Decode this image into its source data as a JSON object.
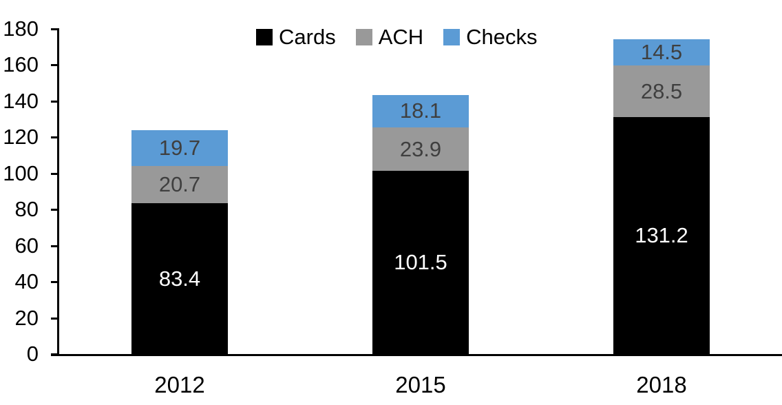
{
  "chart_data": {
    "type": "bar",
    "stacked": true,
    "title": "",
    "categories": [
      "2012",
      "2015",
      "2018"
    ],
    "series": [
      {
        "name": "Cards",
        "color": "#000000",
        "label_color": "#ffffff",
        "values": [
          83.4,
          101.5,
          131.2
        ]
      },
      {
        "name": "ACH",
        "color": "#999999",
        "label_color": "#3f3f3f",
        "values": [
          20.7,
          23.9,
          28.5
        ]
      },
      {
        "name": "Checks",
        "color": "#5b9bd5",
        "label_color": "#3f3f3f",
        "values": [
          19.7,
          18.1,
          14.5
        ]
      }
    ],
    "ylim": [
      0,
      180
    ],
    "ytick_step": 20,
    "ytick_labels": [
      "0",
      "20",
      "40",
      "60",
      "80",
      "100",
      "120",
      "140",
      "160",
      "180"
    ],
    "grid": false,
    "legend_position": "top-center",
    "legend_items": [
      "Cards",
      "ACH",
      "Checks"
    ],
    "data_labels": true,
    "label_decimals": 1,
    "xlabel": "",
    "ylabel": ""
  },
  "colors": {
    "background": "#ffffff",
    "axis": "#000000",
    "tick_label": "#000000"
  }
}
